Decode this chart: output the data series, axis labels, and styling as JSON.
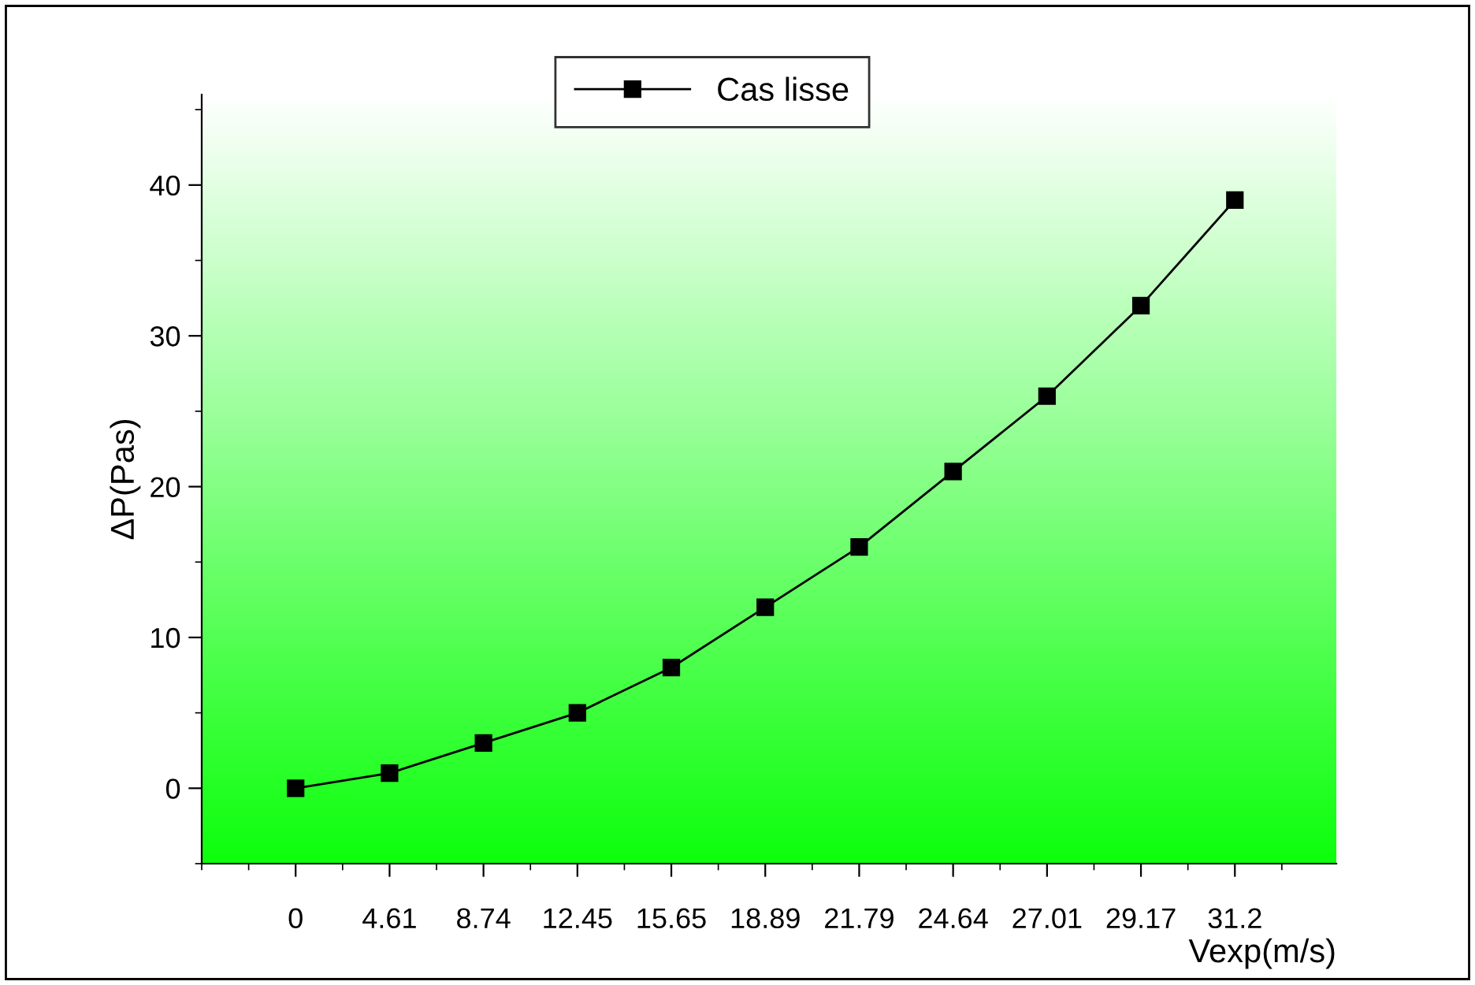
{
  "chart_data": {
    "type": "line",
    "xlabel": "Vexp(m/s)",
    "ylabel": "ΔP(Pas)",
    "categories": [
      "0",
      "4.61",
      "8.74",
      "12.45",
      "15.65",
      "18.89",
      "21.79",
      "24.64",
      "27.01",
      "29.17",
      "31.2"
    ],
    "series": [
      {
        "name": "Cas lisse",
        "color": "#000000",
        "values": [
          0,
          1,
          3,
          5,
          8,
          12,
          16,
          21,
          26,
          32,
          39
        ]
      }
    ],
    "ylim": [
      -5,
      46
    ],
    "yticks": [
      0,
      10,
      20,
      30,
      40
    ],
    "grid": false,
    "legend": "top",
    "marker": "square",
    "line_style": "solid"
  }
}
